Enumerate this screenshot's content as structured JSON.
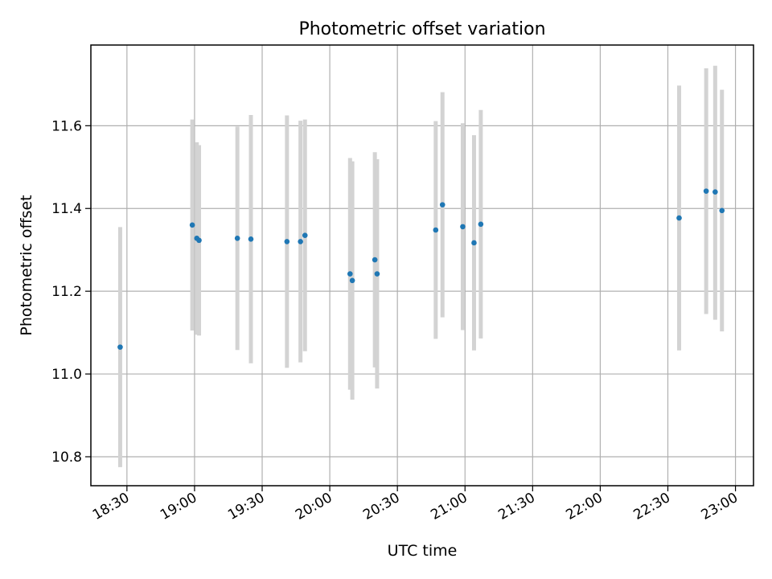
{
  "chart_data": {
    "type": "scatter",
    "title": "Photometric offset variation",
    "xlabel": "UTC time",
    "ylabel": "Photometric offset",
    "grid": true,
    "xlim": [
      "18:14",
      "23:08"
    ],
    "ylim": [
      10.73,
      11.795
    ],
    "x_ticks": [
      "18:30",
      "19:00",
      "19:30",
      "20:00",
      "20:30",
      "21:00",
      "21:30",
      "22:00",
      "22:30",
      "23:00"
    ],
    "y_ticks": [
      "10.8",
      "11.0",
      "11.2",
      "11.4",
      "11.6"
    ],
    "colors": {
      "point": "#1f77b4",
      "errorbar": "#d3d3d3",
      "grid": "#b0b0b0"
    },
    "points": [
      {
        "x": "18:27",
        "y": 11.065,
        "y_low": 10.775,
        "y_high": 11.355
      },
      {
        "x": "18:59",
        "y": 11.36,
        "y_low": 11.105,
        "y_high": 11.615
      },
      {
        "x": "19:01",
        "y": 11.328,
        "y_low": 11.095,
        "y_high": 11.56
      },
      {
        "x": "19:02",
        "y": 11.323,
        "y_low": 11.093,
        "y_high": 11.553
      },
      {
        "x": "19:19",
        "y": 11.328,
        "y_low": 11.058,
        "y_high": 11.598
      },
      {
        "x": "19:25",
        "y": 11.326,
        "y_low": 11.026,
        "y_high": 11.626
      },
      {
        "x": "19:41",
        "y": 11.32,
        "y_low": 11.015,
        "y_high": 11.625
      },
      {
        "x": "19:47",
        "y": 11.32,
        "y_low": 11.028,
        "y_high": 11.612
      },
      {
        "x": "19:49",
        "y": 11.335,
        "y_low": 11.055,
        "y_high": 11.615
      },
      {
        "x": "20:09",
        "y": 11.242,
        "y_low": 10.962,
        "y_high": 11.522
      },
      {
        "x": "20:10",
        "y": 11.226,
        "y_low": 10.938,
        "y_high": 11.514
      },
      {
        "x": "20:20",
        "y": 11.276,
        "y_low": 11.016,
        "y_high": 11.536
      },
      {
        "x": "20:21",
        "y": 11.242,
        "y_low": 10.965,
        "y_high": 11.519
      },
      {
        "x": "20:47",
        "y": 11.348,
        "y_low": 11.085,
        "y_high": 11.611
      },
      {
        "x": "20:50",
        "y": 11.409,
        "y_low": 11.137,
        "y_high": 11.681
      },
      {
        "x": "20:59",
        "y": 11.356,
        "y_low": 11.106,
        "y_high": 11.606
      },
      {
        "x": "21:04",
        "y": 11.317,
        "y_low": 11.057,
        "y_high": 11.577
      },
      {
        "x": "21:07",
        "y": 11.362,
        "y_low": 11.086,
        "y_high": 11.638
      },
      {
        "x": "22:35",
        "y": 11.377,
        "y_low": 11.057,
        "y_high": 11.697
      },
      {
        "x": "22:47",
        "y": 11.442,
        "y_low": 11.145,
        "y_high": 11.739
      },
      {
        "x": "22:51",
        "y": 11.44,
        "y_low": 11.131,
        "y_high": 11.745
      },
      {
        "x": "22:54",
        "y": 11.395,
        "y_low": 11.103,
        "y_high": 11.687
      }
    ]
  }
}
